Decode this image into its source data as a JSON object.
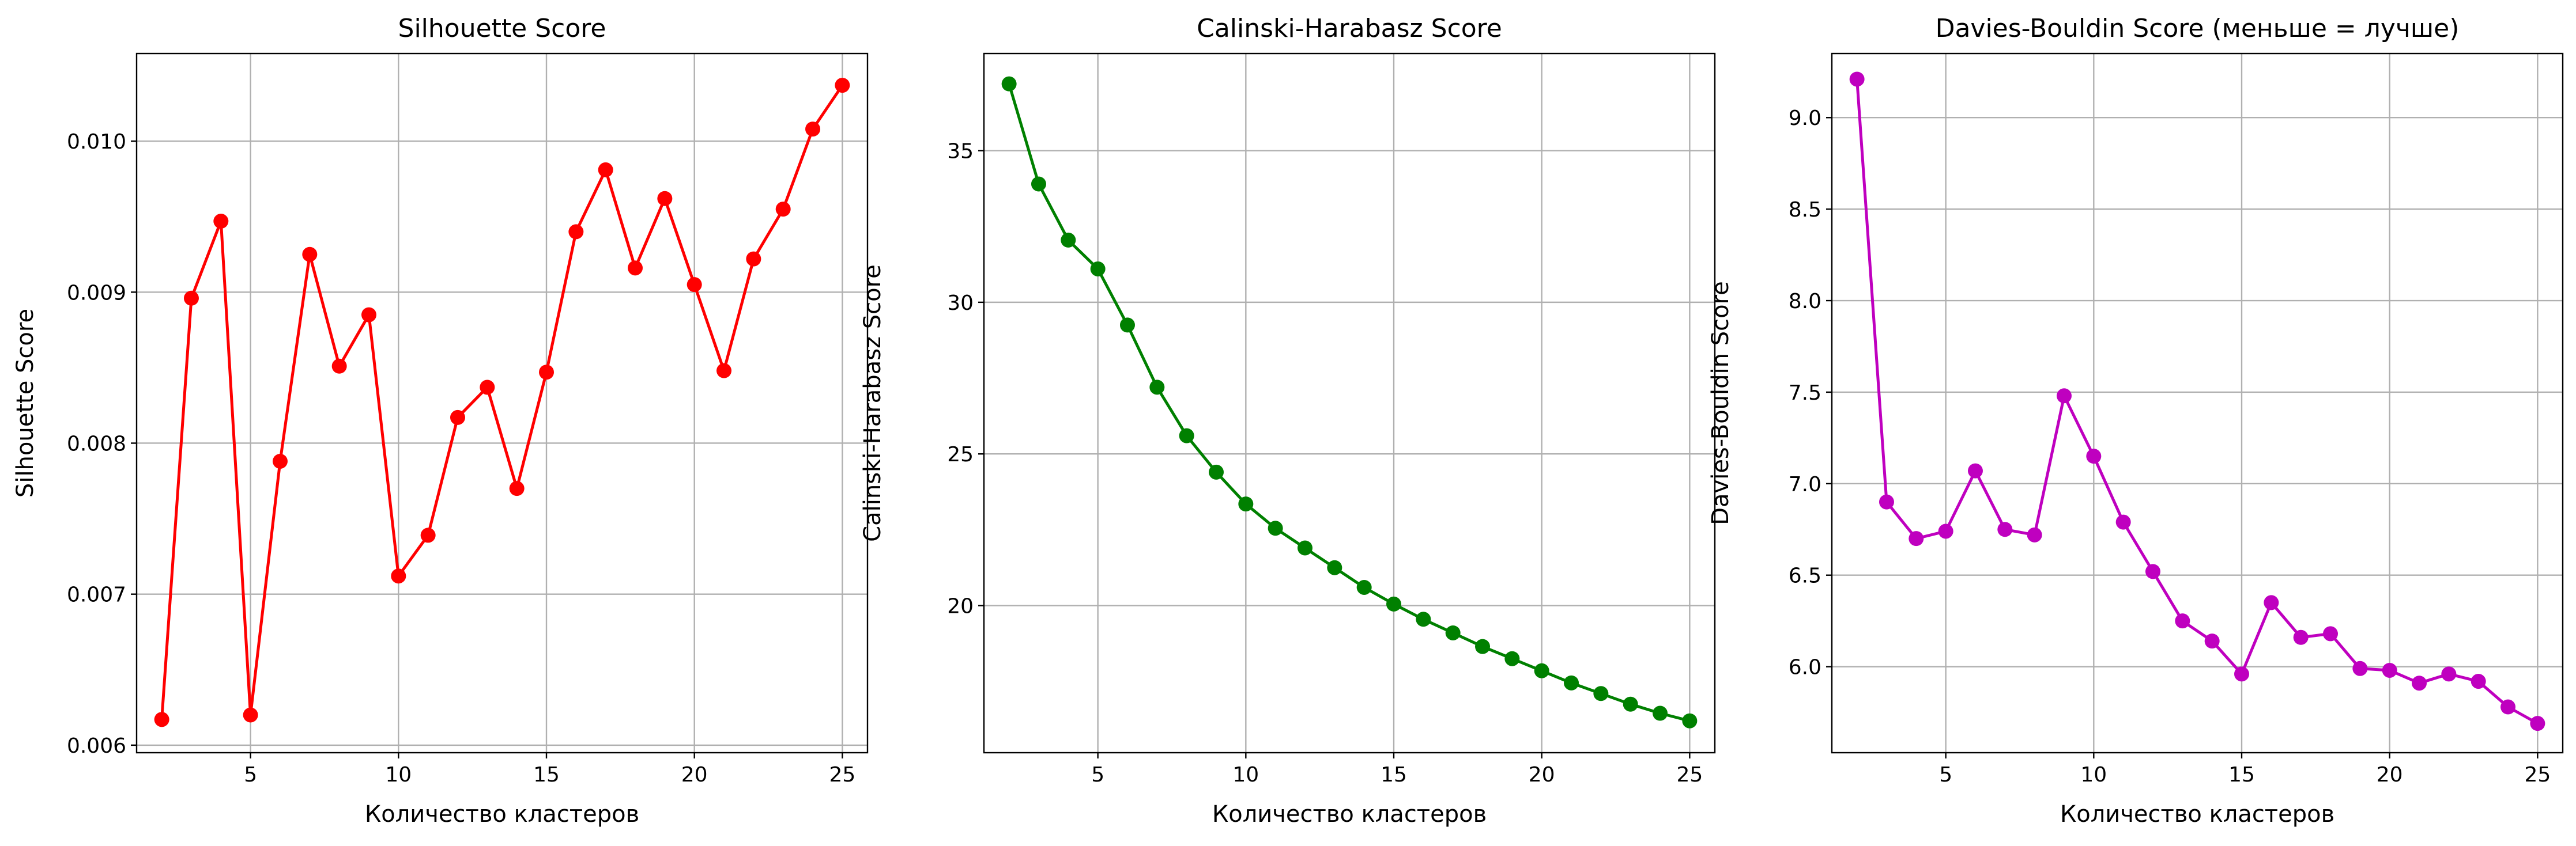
{
  "chart_data": [
    {
      "type": "line",
      "title": "Silhouette Score",
      "xlabel": "Количество кластеров",
      "ylabel": "Silhouette Score",
      "color": "#ff0000",
      "marker": "circle",
      "grid": true,
      "xlim": [
        1.15,
        25.85
      ],
      "ylim": [
        0.00595,
        0.01058
      ],
      "xticks": [
        5,
        10,
        15,
        20,
        25
      ],
      "xtick_labels": [
        "5",
        "10",
        "15",
        "20",
        "25"
      ],
      "yticks": [
        0.006,
        0.007,
        0.008,
        0.009,
        0.01
      ],
      "ytick_labels": [
        "0.006",
        "0.007",
        "0.008",
        "0.009",
        "0.010"
      ],
      "x": [
        2,
        3,
        4,
        5,
        6,
        7,
        8,
        9,
        10,
        11,
        12,
        13,
        14,
        15,
        16,
        17,
        18,
        19,
        20,
        21,
        22,
        23,
        24,
        25
      ],
      "y": [
        0.00617,
        0.00896,
        0.00947,
        0.0062,
        0.00788,
        0.00925,
        0.00851,
        0.00885,
        0.00712,
        0.00739,
        0.00817,
        0.00837,
        0.0077,
        0.00847,
        0.0094,
        0.00981,
        0.00916,
        0.00962,
        0.00905,
        0.00848,
        0.00922,
        0.00955,
        0.01008,
        0.01037
      ]
    },
    {
      "type": "line",
      "title": "Calinski-Harabasz Score",
      "xlabel": "Количество кластеров",
      "ylabel": "Calinski-Harabasz Score",
      "color": "#008000",
      "marker": "circle",
      "grid": true,
      "xlim": [
        1.15,
        25.85
      ],
      "ylim": [
        15.15,
        38.2
      ],
      "xticks": [
        5,
        10,
        15,
        20,
        25
      ],
      "xtick_labels": [
        "5",
        "10",
        "15",
        "20",
        "25"
      ],
      "yticks": [
        20,
        25,
        30,
        35
      ],
      "ytick_labels": [
        "20",
        "25",
        "30",
        "35"
      ],
      "x": [
        2,
        3,
        4,
        5,
        6,
        7,
        8,
        9,
        10,
        11,
        12,
        13,
        14,
        15,
        16,
        17,
        18,
        19,
        20,
        21,
        22,
        23,
        24,
        25
      ],
      "y": [
        37.2,
        33.9,
        32.05,
        31.1,
        29.25,
        27.2,
        25.6,
        24.4,
        23.35,
        22.55,
        21.9,
        21.25,
        20.6,
        20.05,
        19.55,
        19.1,
        18.65,
        18.25,
        17.85,
        17.45,
        17.1,
        16.75,
        16.45,
        16.2
      ]
    },
    {
      "type": "line",
      "title": "Davies-Bouldin Score (меньше = лучше)",
      "xlabel": "Количество кластеров",
      "ylabel": "Davies-Bouldin Score",
      "color": "#bf00bf",
      "marker": "circle",
      "grid": true,
      "xlim": [
        1.15,
        25.85
      ],
      "ylim": [
        5.53,
        9.35
      ],
      "xticks": [
        5,
        10,
        15,
        20,
        25
      ],
      "xtick_labels": [
        "5",
        "10",
        "15",
        "20",
        "25"
      ],
      "yticks": [
        6.0,
        6.5,
        7.0,
        7.5,
        8.0,
        8.5,
        9.0
      ],
      "ytick_labels": [
        "6.0",
        "6.5",
        "7.0",
        "7.5",
        "8.0",
        "8.5",
        "9.0"
      ],
      "x": [
        2,
        3,
        4,
        5,
        6,
        7,
        8,
        9,
        10,
        11,
        12,
        13,
        14,
        15,
        16,
        17,
        18,
        19,
        20,
        21,
        22,
        23,
        24,
        25
      ],
      "y": [
        9.21,
        6.9,
        6.7,
        6.74,
        7.07,
        6.75,
        6.72,
        7.48,
        7.15,
        6.79,
        6.52,
        6.25,
        6.14,
        5.96,
        6.35,
        6.16,
        6.18,
        5.99,
        5.98,
        5.91,
        5.96,
        5.92,
        5.78,
        5.69
      ]
    }
  ]
}
